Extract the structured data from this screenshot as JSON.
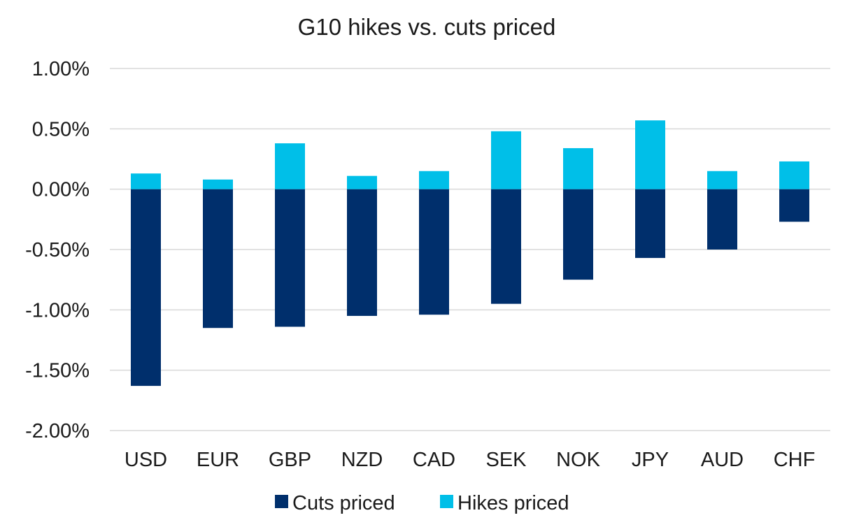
{
  "chart_data": {
    "type": "bar",
    "stacked": true,
    "title": "G10 hikes vs. cuts priced",
    "xlabel": "",
    "ylabel": "",
    "categories": [
      "USD",
      "EUR",
      "GBP",
      "NZD",
      "CAD",
      "SEK",
      "NOK",
      "JPY",
      "AUD",
      "CHF"
    ],
    "series": [
      {
        "name": "Cuts priced",
        "color": "#002f6c",
        "values": [
          -1.63,
          -1.15,
          -1.14,
          -1.05,
          -1.04,
          -0.95,
          -0.75,
          -0.57,
          -0.5,
          -0.27
        ]
      },
      {
        "name": "Hikes priced",
        "color": "#00bfe8",
        "values": [
          0.13,
          0.08,
          0.38,
          0.11,
          0.15,
          0.48,
          0.34,
          0.57,
          0.15,
          0.23
        ]
      }
    ],
    "ylim": [
      -2.0,
      1.0
    ],
    "yticks": [
      "1.00%",
      "0.50%",
      "0.00%",
      "-0.50%",
      "-1.00%",
      "-1.50%",
      "-2.00%"
    ],
    "ytick_values": [
      1.0,
      0.5,
      0.0,
      -0.5,
      -1.0,
      -1.5,
      -2.0
    ],
    "grid": true,
    "legend_position": "bottom"
  }
}
